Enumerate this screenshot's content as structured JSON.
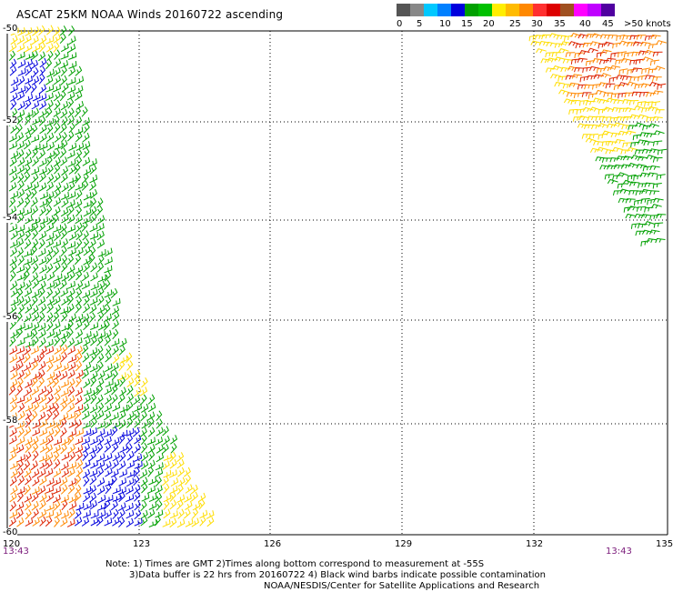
{
  "header": {
    "title": "ASCAT 25KM NOAA Winds 20160722 ascending"
  },
  "legend": {
    "colors": [
      "#555555",
      "#888888",
      "#00c8ff",
      "#0080ff",
      "#0000dd",
      "#00a000",
      "#00c000",
      "#ffee00",
      "#ffbb00",
      "#ff8800",
      "#ff3030",
      "#dd0000",
      "#a05020",
      "#ff00ff",
      "#c000ff",
      "#5000a0"
    ],
    "labels": [
      "0",
      "5",
      "10",
      "15",
      "20",
      "25",
      "30",
      "35",
      "40",
      "45",
      ">50 knots"
    ]
  },
  "map": {
    "lat_labels": [
      "-50",
      "-52",
      "-54",
      "-56",
      "-58",
      "-60"
    ],
    "lon_labels": [
      "120",
      "123",
      "126",
      "129",
      "132",
      "135"
    ],
    "time_left": "13:43",
    "time_right": "13:43",
    "barb_colors": {
      "green": "#00a000",
      "blue": "#0000dd",
      "yellow": "#ffdd00",
      "orange": "#ff8800",
      "red": "#dd2200"
    }
  },
  "notes": {
    "line1": "Note: 1) Times are GMT  2)Times along bottom correspond to measurement at -55S",
    "line2": "3)Data buffer is 22 hrs from 20160722  4) Black wind barbs indicate possible contamination",
    "line3": "NOAA/NESDIS/Center for Satellite Applications and Research"
  }
}
